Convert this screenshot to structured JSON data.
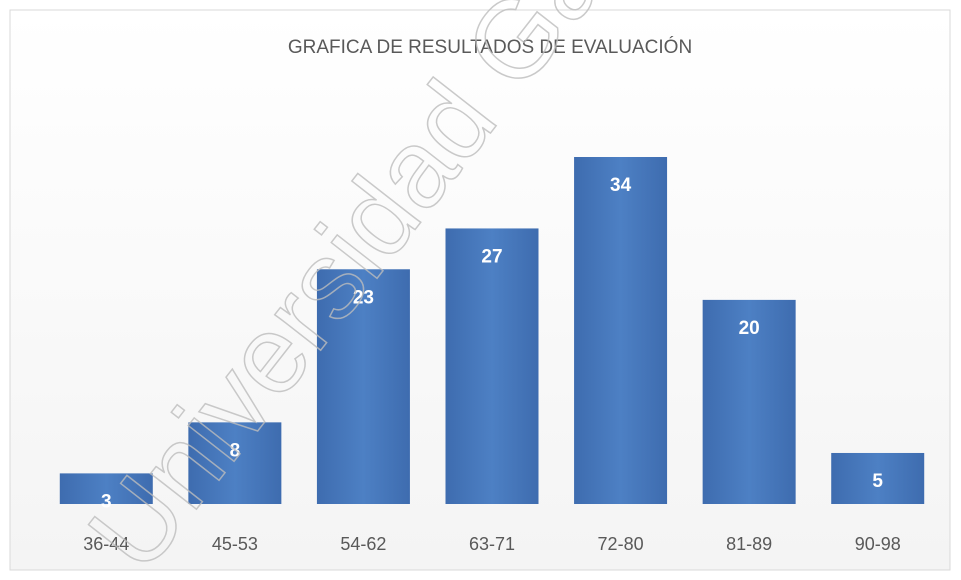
{
  "chart_data": {
    "type": "bar",
    "title": "GRAFICA DE RESULTADOS DE EVALUACIÓN",
    "categories": [
      "36-44",
      "45-53",
      "54-62",
      "63-71",
      "72-80",
      "81-89",
      "90-98"
    ],
    "values": [
      3,
      8,
      23,
      27,
      34,
      20,
      5
    ],
    "color": "#4a7cc0",
    "watermark": "Universidad Ga"
  }
}
